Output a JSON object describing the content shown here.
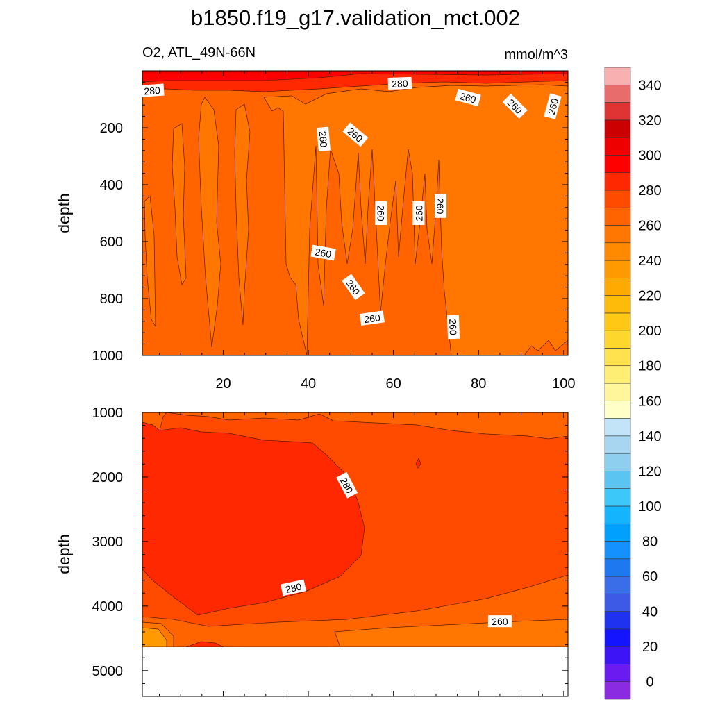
{
  "chart_data": {
    "type": "heatmap",
    "title": "b1850.f19_g17.validation_mct.002",
    "variable_label": "O2, ATL_49N-66N",
    "units": "mmol/m^3",
    "x_ticks": [
      20,
      40,
      60,
      80,
      100
    ],
    "xlim": [
      1,
      101
    ],
    "panels": [
      {
        "name": "upper",
        "ylabel": "depth",
        "ylim": [
          0,
          1000
        ],
        "y_ticks": [
          200,
          400,
          600,
          800,
          1000
        ],
        "contour_labels": [
          {
            "text": "280",
            "x": 3.3,
            "depth": 70,
            "angle": -4
          },
          {
            "text": "280",
            "x": 61.5,
            "depth": 45,
            "angle": -2
          },
          {
            "text": "260",
            "x": 77.5,
            "depth": 95,
            "angle": 15
          },
          {
            "text": "260",
            "x": 88.5,
            "depth": 125,
            "angle": 45
          },
          {
            "text": "260",
            "x": 97.5,
            "depth": 125,
            "angle": -75
          },
          {
            "text": "260",
            "x": 43.5,
            "depth": 240,
            "angle": 85
          },
          {
            "text": "260",
            "x": 51,
            "depth": 225,
            "angle": 40
          },
          {
            "text": "260",
            "x": 57,
            "depth": 500,
            "angle": 90
          },
          {
            "text": "260",
            "x": 66,
            "depth": 500,
            "angle": -90
          },
          {
            "text": "260",
            "x": 71,
            "depth": 475,
            "angle": 90
          },
          {
            "text": "260",
            "x": 43.5,
            "depth": 640,
            "angle": 10
          },
          {
            "text": "260",
            "x": 50.5,
            "depth": 760,
            "angle": 55
          },
          {
            "text": "260",
            "x": 55,
            "depth": 870,
            "angle": -8
          },
          {
            "text": "260",
            "x": 74,
            "depth": 900,
            "angle": 88
          }
        ]
      },
      {
        "name": "lower",
        "ylabel": "depth",
        "ylim": [
          1000,
          5400
        ],
        "y_ticks": [
          1000,
          2000,
          3000,
          4000,
          5000
        ],
        "missing_below_depth": 4630,
        "contour_labels": [
          {
            "text": "280",
            "x": 49,
            "depth": 2130,
            "angle": 62
          },
          {
            "text": "280",
            "x": 36.5,
            "depth": 3720,
            "angle": -12
          },
          {
            "text": "260",
            "x": 85,
            "depth": 4240,
            "angle": 0
          }
        ]
      }
    ],
    "colorbar": {
      "levels": [
        0,
        20,
        40,
        60,
        80,
        100,
        120,
        140,
        160,
        180,
        200,
        220,
        240,
        260,
        280,
        300,
        320,
        340
      ],
      "tick_labels": [
        "0",
        "20",
        "40",
        "60",
        "80",
        "100",
        "120",
        "140",
        "160",
        "180",
        "200",
        "220",
        "240",
        "260",
        "280",
        "300",
        "320",
        "340"
      ],
      "colors": [
        "#8a2be2",
        "#6a1bf0",
        "#3c14f6",
        "#1414ff",
        "#1e32f0",
        "#3c5ae6",
        "#3a6ee8",
        "#1e78f0",
        "#1490ff",
        "#00a0ff",
        "#14b4ff",
        "#3cc8f8",
        "#5cc4f0",
        "#8ecff0",
        "#a8d6f0",
        "#c2e4f6",
        "#ffffc8",
        "#fff59a",
        "#ffee74",
        "#ffe24e",
        "#fed72c",
        "#fec814",
        "#ffbb0a",
        "#ffaa00",
        "#ff9b00",
        "#ff8a00",
        "#ff7700",
        "#ff6400",
        "#ff4b00",
        "#ff2800",
        "#ff0000",
        "#ee0000",
        "#cc0000",
        "#e03434",
        "#e86c6c",
        "#f8b0b0"
      ]
    }
  }
}
